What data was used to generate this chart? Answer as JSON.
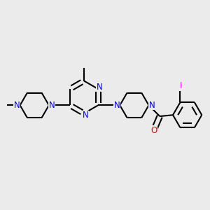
{
  "bg_color": "#EBEBEB",
  "bond_color": "#000000",
  "n_color": "#0000FF",
  "o_color": "#FF0000",
  "i_color": "#FF00FF",
  "bond_width": 1.5,
  "dbo": 0.012,
  "figsize": [
    3.0,
    3.0
  ],
  "dpi": 100,
  "xlim": [
    -3.5,
    4.5
  ],
  "ylim": [
    -2.5,
    2.5
  ]
}
